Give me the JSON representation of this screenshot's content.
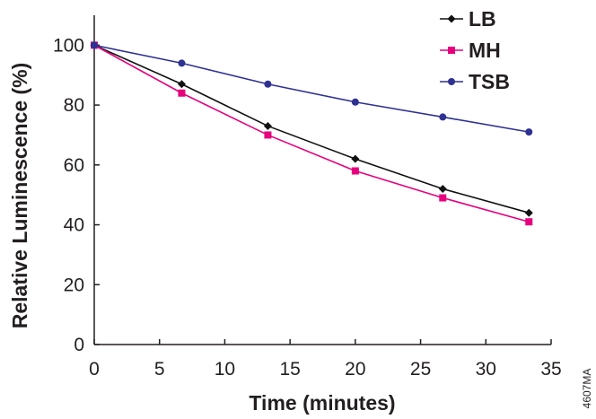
{
  "chart_data": {
    "type": "line",
    "xlabel": "Time (minutes)",
    "ylabel": "Relative Luminescence (%)",
    "xlim": [
      0,
      35
    ],
    "ylim": [
      0,
      110
    ],
    "xticks": [
      0,
      5,
      10,
      15,
      20,
      25,
      30,
      35
    ],
    "yticks": [
      0,
      20,
      40,
      60,
      80,
      100
    ],
    "grid": false,
    "legend_position": "top-right",
    "series": [
      {
        "name": "LB",
        "color": "#111111",
        "marker": "diamond",
        "x": [
          0,
          6.7,
          13.3,
          20,
          26.7,
          33.3
        ],
        "y": [
          100,
          87,
          73,
          62,
          52,
          44
        ]
      },
      {
        "name": "MH",
        "color": "#e6007e",
        "marker": "square",
        "x": [
          0,
          6.7,
          13.3,
          20,
          26.7,
          33.3
        ],
        "y": [
          100,
          84,
          70,
          58,
          49,
          41
        ]
      },
      {
        "name": "TSB",
        "color": "#2e3192",
        "marker": "circle",
        "x": [
          0,
          6.7,
          13.3,
          20,
          26.7,
          33.3
        ],
        "y": [
          100,
          94,
          87,
          81,
          76,
          71
        ]
      }
    ]
  },
  "figure_code": "4607MA"
}
